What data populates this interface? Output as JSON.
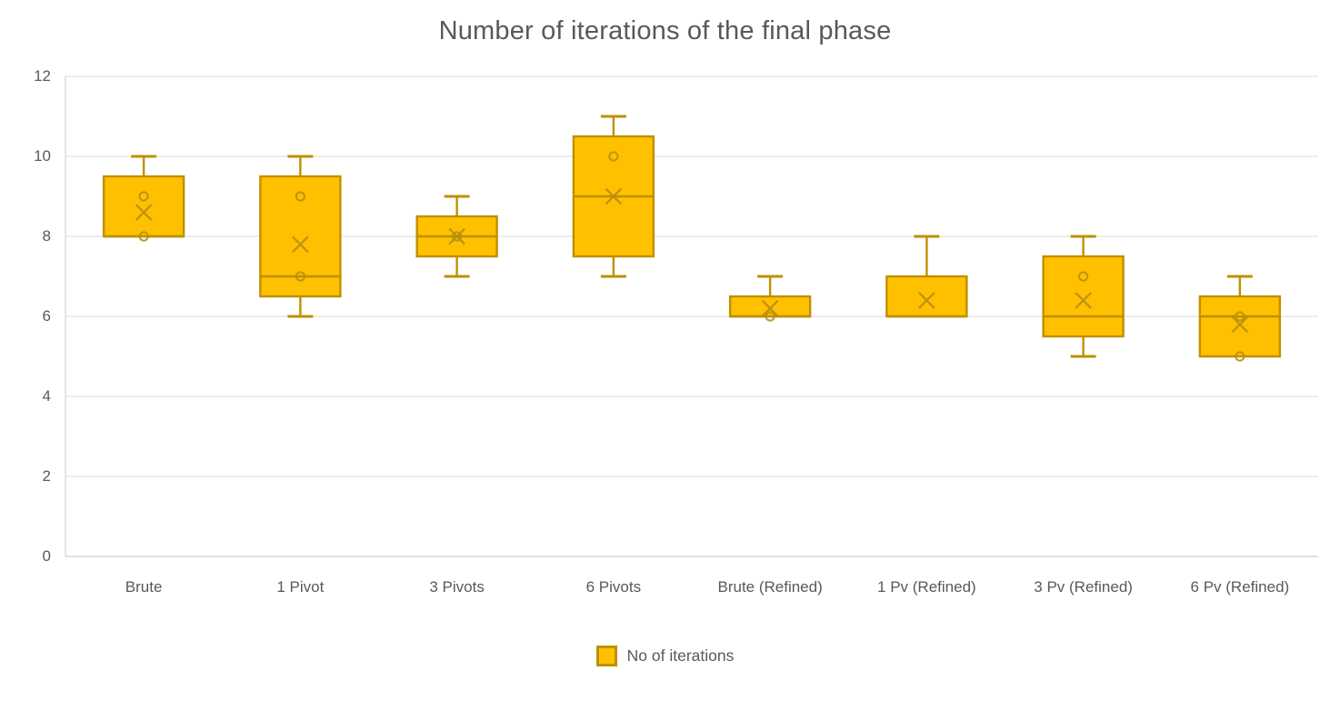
{
  "chart_data": {
    "type": "box",
    "title": "Number of iterations of the final phase",
    "categories": [
      "Brute",
      "1 Pivot",
      "3 Pivots",
      "6 Pivots",
      "Brute (Refined)",
      "1 Pv (Refined)",
      "3 Pv (Refined)",
      "6 Pv (Refined)"
    ],
    "ylim": [
      0,
      12
    ],
    "yticks": [
      0,
      2,
      4,
      6,
      8,
      10,
      12
    ],
    "grid": true,
    "legend": {
      "label": "No of iterations",
      "position": "bottom"
    },
    "series": [
      {
        "name": "No of iterations",
        "boxes": [
          {
            "category": "Brute",
            "whisker_low": 8,
            "q1": 8,
            "median": 8,
            "q3": 9.5,
            "whisker_high": 10,
            "mean": 8.6,
            "points": [
              9,
              8
            ]
          },
          {
            "category": "1 Pivot",
            "whisker_low": 6,
            "q1": 6.5,
            "median": 7,
            "q3": 9.5,
            "whisker_high": 10,
            "mean": 7.8,
            "points": [
              9,
              7
            ]
          },
          {
            "category": "3 Pivots",
            "whisker_low": 7,
            "q1": 7.5,
            "median": 8,
            "q3": 8.5,
            "whisker_high": 9,
            "mean": 8.0,
            "points": [
              8
            ]
          },
          {
            "category": "6 Pivots",
            "whisker_low": 7,
            "q1": 7.5,
            "median": 9,
            "q3": 10.5,
            "whisker_high": 11,
            "mean": 9.0,
            "points": [
              10
            ]
          },
          {
            "category": "Brute (Refined)",
            "whisker_low": 6,
            "q1": 6,
            "median": 6,
            "q3": 6.5,
            "whisker_high": 7,
            "mean": 6.2,
            "points": [
              6
            ]
          },
          {
            "category": "1 Pv (Refined)",
            "whisker_low": 6,
            "q1": 6,
            "median": 6,
            "q3": 7,
            "whisker_high": 8,
            "mean": 6.4,
            "points": []
          },
          {
            "category": "3 Pv (Refined)",
            "whisker_low": 5,
            "q1": 5.5,
            "median": 6,
            "q3": 7.5,
            "whisker_high": 8,
            "mean": 6.4,
            "points": [
              7
            ]
          },
          {
            "category": "6 Pv (Refined)",
            "whisker_low": 5,
            "q1": 5,
            "median": 6,
            "q3": 6.5,
            "whisker_high": 7,
            "mean": 5.8,
            "points": [
              6,
              5
            ]
          }
        ]
      }
    ],
    "colors": {
      "box_fill": "#FFC000",
      "box_border": "#BF9000",
      "marker": "#BA8E10",
      "gridline": "#D9D9D9",
      "axis_line": "#D9D9D9",
      "text": "#595959"
    }
  },
  "yaxis": {
    "tick_labels": [
      "12",
      "10",
      "8",
      "6",
      "4",
      "2",
      "0"
    ]
  }
}
